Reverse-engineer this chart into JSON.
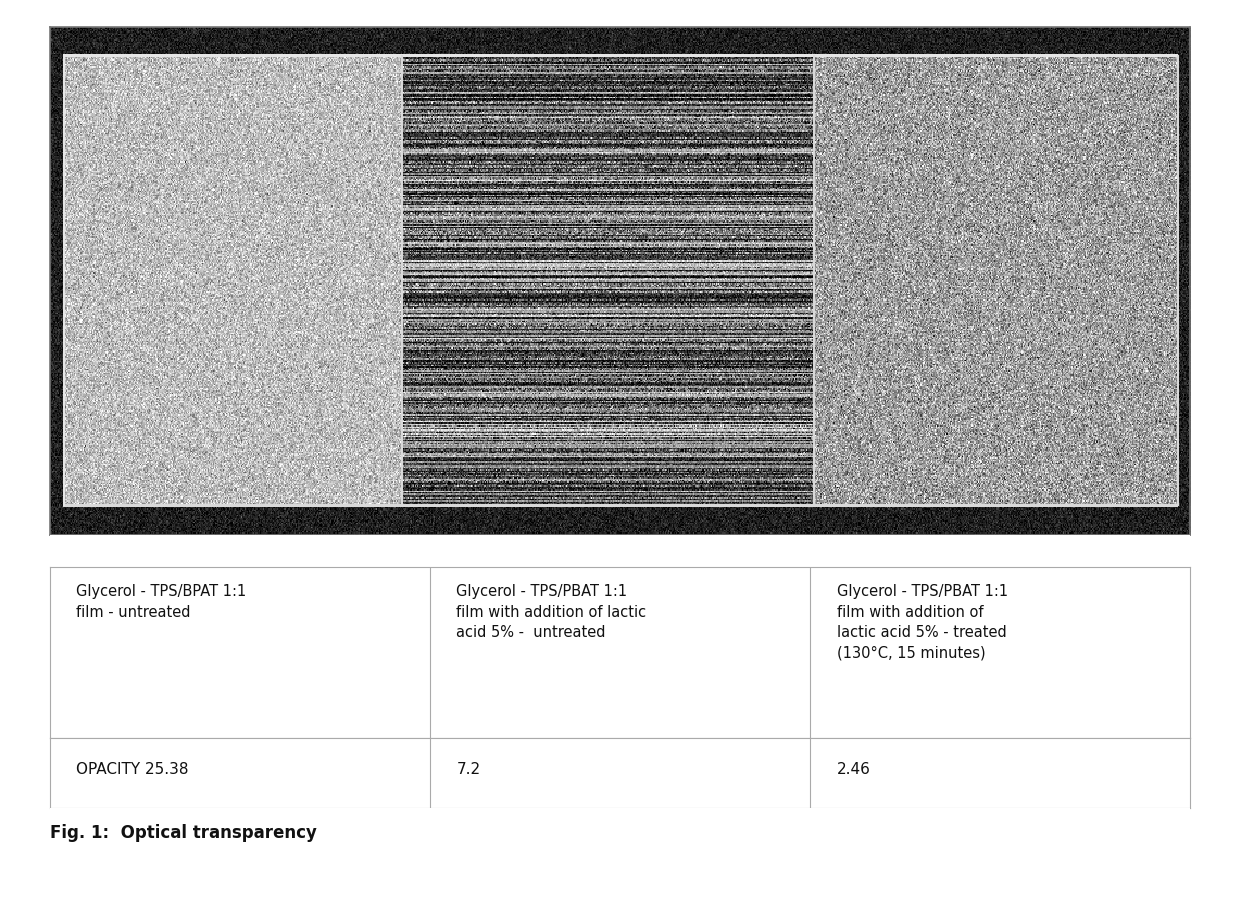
{
  "caption": "Fig. 1:  Optical transparency",
  "table_labels": [
    "Glycerol - TPS/BPAT 1:1\nfilm - untreated",
    "Glycerol - TPS/PBAT 1:1\nfilm with addition of lactic\nacid 5% -  untreated",
    "Glycerol - TPS/PBAT 1:1\nfilm with addition of\nlactic acid 5% - treated\n(130°C, 15 minutes)"
  ],
  "opacity_label": "OPACITY",
  "opacity_values": [
    "25.38",
    "7.2",
    "2.46"
  ],
  "bg_color": "#ffffff",
  "table_line_color": "#aaaaaa",
  "font_size_table": 10.5,
  "font_size_opacity": 11,
  "font_size_caption": 12,
  "noise": {
    "panel1_base": 0.74,
    "panel1_std": 0.13,
    "panel2_base": 0.5,
    "panel2_std": 0.28,
    "panel3_base": 0.62,
    "panel3_std": 0.17,
    "frame_base": 0.12,
    "frame_std": 0.08
  }
}
